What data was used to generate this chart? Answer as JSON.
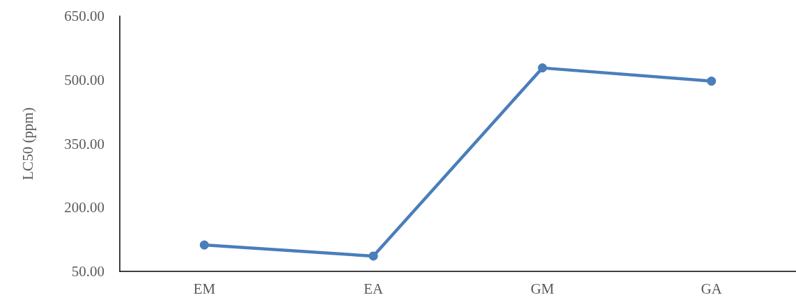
{
  "chart_data": {
    "type": "line",
    "ylabel": "LC50 (ppm)",
    "categories": [
      "EM",
      "EA",
      "GM",
      "GA"
    ],
    "series": [
      {
        "color": "#4a7ebb",
        "values": [
          112,
          86,
          528,
          497
        ]
      }
    ],
    "ylim": [
      50,
      650
    ],
    "yticks": [
      {
        "value": 50,
        "label": "50.00"
      },
      {
        "value": 200,
        "label": "200.00"
      },
      {
        "value": 350,
        "label": "350.00"
      },
      {
        "value": 500,
        "label": "500.00"
      },
      {
        "value": 650,
        "label": "650.00"
      }
    ],
    "grid": false,
    "marker": "circle",
    "line_style": "solid"
  }
}
